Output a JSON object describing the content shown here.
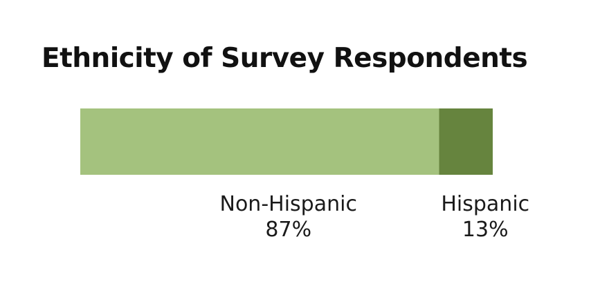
{
  "chart_data": {
    "type": "bar",
    "orientation": "horizontal-stacked",
    "title": "Ethnicity of Survey Respondents",
    "categories": [
      "Non-Hispanic",
      "Hispanic"
    ],
    "values": [
      87,
      13
    ],
    "value_labels": [
      "87%",
      "13%"
    ],
    "unit": "%",
    "colors": [
      "#a4c27e",
      "#66843e"
    ],
    "grid": false,
    "legend": "none"
  }
}
